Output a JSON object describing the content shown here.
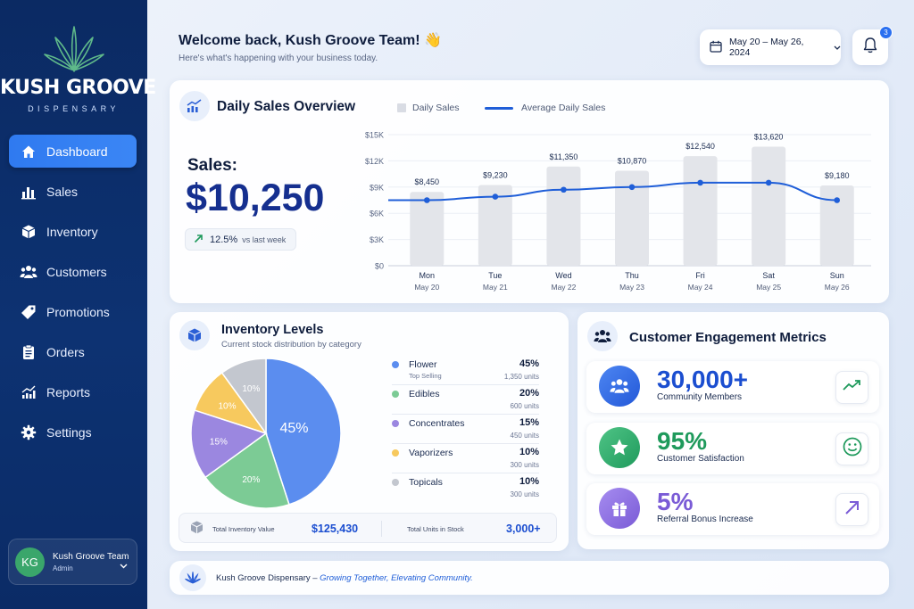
{
  "brand": {
    "name": "KUSH GROOVE",
    "sub": "DISPENSARY"
  },
  "nav": [
    {
      "label": "Dashboard",
      "icon": "home-icon",
      "active": true
    },
    {
      "label": "Sales",
      "icon": "bar-chart-icon"
    },
    {
      "label": "Inventory",
      "icon": "box-icon"
    },
    {
      "label": "Customers",
      "icon": "users-icon"
    },
    {
      "label": "Promotions",
      "icon": "tag-icon"
    },
    {
      "label": "Orders",
      "icon": "clipboard-icon"
    },
    {
      "label": "Reports",
      "icon": "trend-chart-icon"
    },
    {
      "label": "Settings",
      "icon": "gear-icon"
    }
  ],
  "user": {
    "initials": "KG",
    "name": "Kush Groove Team",
    "role": "Admin"
  },
  "header": {
    "title": "Welcome back, Kush Groove Team! 👋",
    "subtitle": "Here's what's happening with your business today.",
    "date_range": "May 20 – May 26, 2024",
    "notification_count": "3"
  },
  "sales": {
    "title": "Daily Sales Overview",
    "legend_bar": "Daily Sales",
    "legend_line": "Average Daily Sales",
    "label": "Sales:",
    "value": "$10,250",
    "change": "12.5%",
    "change_note": "vs last week"
  },
  "chart_data": {
    "type": "bar",
    "categories": [
      {
        "day": "Mon",
        "date": "May 20"
      },
      {
        "day": "Tue",
        "date": "May 21"
      },
      {
        "day": "Wed",
        "date": "May 22"
      },
      {
        "day": "Thu",
        "date": "May 23"
      },
      {
        "day": "Fri",
        "date": "May 24"
      },
      {
        "day": "Sat",
        "date": "May 25"
      },
      {
        "day": "Sun",
        "date": "May 26"
      }
    ],
    "series": [
      {
        "name": "Daily Sales",
        "type": "bar",
        "values": [
          8450,
          9230,
          11350,
          10870,
          12540,
          13620,
          9180
        ],
        "labels": [
          "$8,450",
          "$9,230",
          "$11,350",
          "$10,870",
          "$12,540",
          "$13,620",
          "$9,180"
        ]
      },
      {
        "name": "Average Daily Sales",
        "type": "line",
        "values": [
          7500,
          7900,
          8700,
          9000,
          9500,
          9500,
          7500
        ]
      }
    ],
    "yticks": [
      "$0",
      "$3K",
      "$6K",
      "$9K",
      "$12K",
      "$15K"
    ],
    "ylim": [
      0,
      15000
    ],
    "grid": "horizontal",
    "legend": "top"
  },
  "inventory": {
    "title": "Inventory Levels",
    "subtitle": "Current stock distribution by category",
    "items": [
      {
        "name": "Flower",
        "tag": "Top Selling",
        "pct": "45%",
        "units": "1,350 units",
        "value": 45,
        "color": "#5b8def"
      },
      {
        "name": "Edibles",
        "tag": "",
        "pct": "20%",
        "units": "600 units",
        "value": 20,
        "color": "#7ccb95"
      },
      {
        "name": "Concentrates",
        "tag": "",
        "pct": "15%",
        "units": "450 units",
        "value": 15,
        "color": "#9b87e0"
      },
      {
        "name": "Vaporizers",
        "tag": "",
        "pct": "10%",
        "units": "300 units",
        "value": 10,
        "color": "#f7c95e"
      },
      {
        "name": "Topicals",
        "tag": "",
        "pct": "10%",
        "units": "300 units",
        "value": 10,
        "color": "#c3c7cf"
      }
    ],
    "total_value_label": "Total Inventory Value",
    "total_value": "$125,430",
    "total_units_label": "Total Units in Stock",
    "total_units": "3,000+"
  },
  "engagement": {
    "title": "Customer Engagement Metrics",
    "metrics": [
      {
        "value": "30,000+",
        "label": "Community Members",
        "color": "#1b4ed0",
        "icon": "community-icon"
      },
      {
        "value": "95%",
        "label": "Customer Satisfaction",
        "color": "#1f9a5c",
        "icon": "star-icon"
      },
      {
        "value": "5%",
        "label": "Referral Bonus Increase",
        "color": "#7a5bd6",
        "icon": "gift-icon"
      }
    ]
  },
  "footer": {
    "brand": "Kush Groove Dispensary –",
    "tagline": "Growing Together, Elevating Community."
  }
}
